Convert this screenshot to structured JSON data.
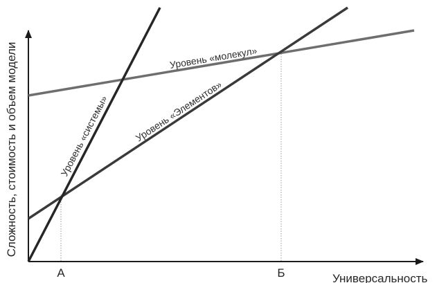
{
  "y_axis_label": "Сложность, стоимость и объем модели",
  "x_axis_label": "Универсальность",
  "points": {
    "a": "А",
    "b": "Б"
  },
  "lines": {
    "system": {
      "label": "Уровень «системы»",
      "color": "#262626"
    },
    "elements": {
      "label": "Уровень «Элементов»",
      "color": "#3a3a3a"
    },
    "molecules": {
      "label": "Уровень «молекул»",
      "color": "#6e6e6e"
    }
  },
  "colors": {
    "axis": "#1a1a1a",
    "guide": "#9a9a9a"
  }
}
